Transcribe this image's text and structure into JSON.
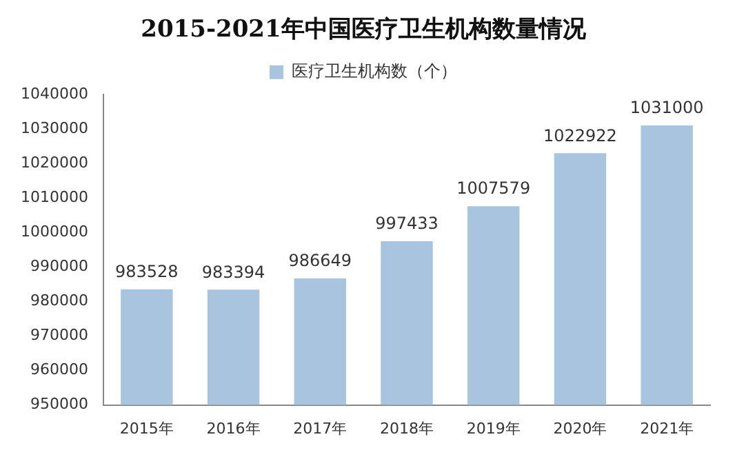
{
  "chart_data": {
    "type": "bar",
    "title": "2015-2021年中国医疗卫生机构数量情况",
    "categories": [
      "2015年",
      "2016年",
      "2017年",
      "2018年",
      "2019年",
      "2020年",
      "2021年"
    ],
    "series": [
      {
        "name": "医疗卫生机构数（个）",
        "color": "#a9c4de",
        "values": [
          983528,
          983394,
          986649,
          997433,
          1007579,
          1022922,
          1031000
        ]
      }
    ],
    "ylim": [
      950000,
      1040000
    ],
    "yticks": [
      950000,
      960000,
      970000,
      980000,
      990000,
      1000000,
      1010000,
      1020000,
      1030000,
      1040000
    ],
    "grid": false,
    "legend": "top",
    "data_labels": true
  }
}
